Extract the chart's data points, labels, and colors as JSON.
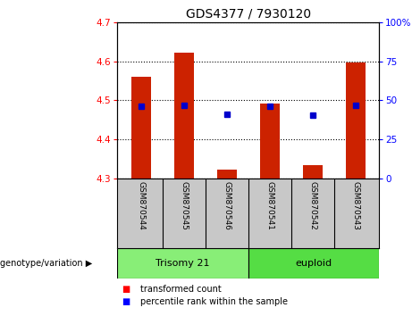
{
  "title": "GDS4377 / 7930120",
  "samples": [
    "GSM870544",
    "GSM870545",
    "GSM870546",
    "GSM870541",
    "GSM870542",
    "GSM870543"
  ],
  "bar_tops": [
    4.56,
    4.622,
    4.322,
    4.492,
    4.335,
    4.597
  ],
  "bar_bottom": 4.3,
  "blue_marker_y": [
    4.485,
    4.487,
    4.465,
    4.486,
    4.463,
    4.487
  ],
  "ylim_left": [
    4.3,
    4.7
  ],
  "yticks_left": [
    4.3,
    4.4,
    4.5,
    4.6,
    4.7
  ],
  "ylim_right": [
    0,
    100
  ],
  "yticks_right": [
    0,
    25,
    50,
    75,
    100
  ],
  "yticklabels_right": [
    "0",
    "25",
    "50",
    "75",
    "100%"
  ],
  "bar_color": "#cc2200",
  "marker_color": "#0000cc",
  "background_label": "#c8c8c8",
  "group1_label": "Trisomy 21",
  "group2_label": "euploid",
  "group1_color": "#88ee77",
  "group2_color": "#55dd44",
  "legend_red_label": "transformed count",
  "legend_blue_label": "percentile rank within the sample",
  "genotype_label": "genotype/variation",
  "title_fontsize": 10,
  "tick_fontsize": 7.5,
  "sample_fontsize": 6.5,
  "group_fontsize": 8,
  "legend_fontsize": 7
}
